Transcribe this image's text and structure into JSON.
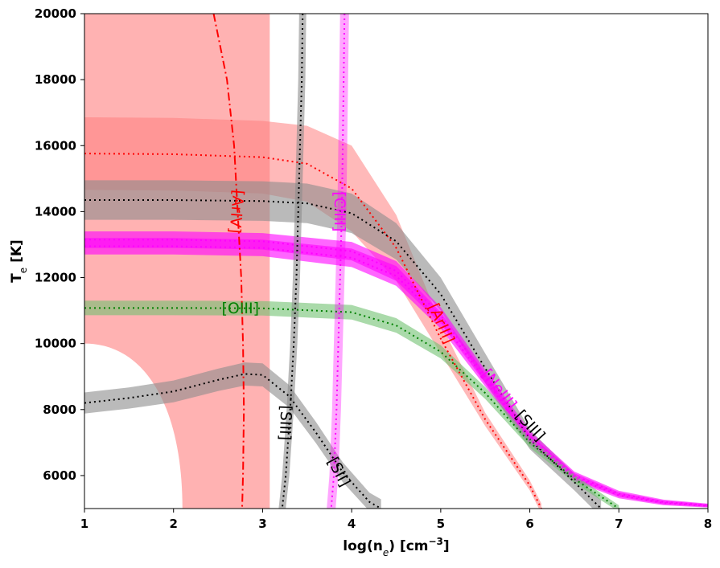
{
  "chart_data": {
    "type": "line",
    "title": "",
    "xlabel": "log(n",
    "xlabel_sub": "e",
    "xlabel_unit": ") [cm",
    "xlabel_sup": "−3",
    "xlabel_end": "]",
    "ylabel": "T",
    "ylabel_sub": "e",
    "ylabel_unit": " [K]",
    "xlim": [
      1,
      8
    ],
    "ylim": [
      5000,
      20000
    ],
    "xticks": [
      1,
      2,
      3,
      4,
      5,
      6,
      7,
      8
    ],
    "yticks": [
      6000,
      8000,
      10000,
      12000,
      14000,
      16000,
      18000,
      20000
    ],
    "colors": {
      "red": "#ff0000",
      "red_band": "#ff7f7f",
      "black": "#000000",
      "grey_band": "#8c8c8c",
      "magenta": "#ff00ff",
      "green": "#008000",
      "green_band": "#72c272"
    },
    "curves": [
      {
        "id": "ariii",
        "name": "[ArIII]",
        "color": "#ff0000",
        "line_style": "dotted",
        "x": [
          1,
          2,
          3,
          3.5,
          4,
          4.5,
          5,
          5.5,
          6,
          6.13
        ],
        "y": [
          15760,
          15740,
          15650,
          15450,
          14700,
          12900,
          10150,
          7700,
          5700,
          5000
        ],
        "band_half": [
          1100,
          1100,
          1100,
          1150,
          1300,
          1000,
          450,
          200,
          150,
          150
        ]
      },
      {
        "id": "sii-high",
        "name": "[SIII]",
        "color": "#000000",
        "line_style": "dotted",
        "x": [
          1,
          2,
          3,
          3.5,
          4,
          4.5,
          5,
          5.5,
          6,
          6.5,
          6.8
        ],
        "y": [
          14350,
          14350,
          14320,
          14250,
          13950,
          13100,
          11500,
          9250,
          7100,
          5800,
          5000
        ],
        "band_half": [
          600,
          600,
          600,
          600,
          600,
          550,
          500,
          450,
          300,
          250,
          250
        ]
      },
      {
        "id": "neiii",
        "name": "[NeIII]",
        "color": "#ff00ff",
        "line_style": "dotted",
        "x": [
          1,
          2,
          3,
          4,
          4.5,
          5,
          5.5,
          6,
          6.5,
          7,
          7.5,
          8
        ],
        "y": [
          12950,
          12950,
          12900,
          12600,
          12050,
          10700,
          8900,
          7100,
          5950,
          5400,
          5170,
          5080
        ],
        "band_half": [
          250,
          250,
          250,
          280,
          300,
          250,
          200,
          150,
          120,
          90,
          70,
          50
        ]
      },
      {
        "id": "neiii-b",
        "name": "",
        "color": "#ff00ff",
        "line_style": "dotted",
        "x": [
          1,
          2,
          3,
          4,
          4.5,
          5,
          5.5,
          6,
          6.5,
          7,
          7.5,
          8
        ],
        "y": [
          13150,
          13150,
          13100,
          12800,
          12200,
          10850,
          9000,
          7200,
          6000,
          5450,
          5200,
          5100
        ],
        "band_half": [
          250,
          250,
          250,
          280,
          300,
          250,
          200,
          150,
          120,
          90,
          70,
          50
        ]
      },
      {
        "id": "oiii",
        "name": "[OIII]",
        "color": "#008000",
        "line_style": "dotted",
        "x": [
          1,
          2,
          3,
          4,
          4.5,
          5,
          5.5,
          6,
          6.5,
          7
        ],
        "y": [
          11080,
          11080,
          11070,
          10950,
          10550,
          9750,
          8500,
          7000,
          5900,
          5000
        ],
        "band_half": [
          220,
          220,
          220,
          220,
          220,
          200,
          180,
          150,
          120,
          100
        ]
      },
      {
        "id": "sii-low",
        "name": "[SII]",
        "color": "#000000",
        "line_style": "dotted",
        "x": [
          1,
          1.5,
          2,
          2.5,
          2.8,
          3,
          3.3,
          3.6,
          3.9,
          4.2,
          4.33
        ],
        "y": [
          8200,
          8350,
          8550,
          8900,
          9080,
          9050,
          8400,
          7300,
          6100,
          5200,
          5000
        ],
        "band_half": [
          320,
          320,
          330,
          340,
          350,
          350,
          340,
          320,
          300,
          280,
          280
        ]
      }
    ],
    "vertical_curves": [
      {
        "id": "ariv",
        "name": "[ArIV]",
        "color": "#ff0000",
        "line_style": "dashdot",
        "y": [
          20000,
          18000,
          16000,
          14000,
          12000,
          10000,
          8000,
          6000,
          5000
        ],
        "x": [
          2.45,
          2.6,
          2.68,
          2.72,
          2.76,
          2.78,
          2.79,
          2.78,
          2.77
        ]
      },
      {
        "id": "siii-v",
        "name": "[SIII]",
        "color": "#000000",
        "line_style": "dotted",
        "y": [
          20000,
          18000,
          16000,
          14000,
          12000,
          10000,
          8000,
          6000,
          5000
        ],
        "x": [
          3.45,
          3.44,
          3.42,
          3.4,
          3.38,
          3.35,
          3.31,
          3.26,
          3.22
        ],
        "band_half_x": 0.04
      },
      {
        "id": "clii",
        "name": "[ClIII]",
        "color": "#ff00ff",
        "line_style": "dotted",
        "y": [
          20000,
          18000,
          16000,
          14000,
          12000,
          10000,
          8000,
          6000,
          5000
        ],
        "x": [
          3.92,
          3.91,
          3.9,
          3.89,
          3.87,
          3.85,
          3.83,
          3.8,
          3.77
        ],
        "band_half_x": 0.05
      }
    ],
    "regions": [
      {
        "id": "ariv-region",
        "note": "[ArIV] uncertainty area",
        "color": "#ff7f7f",
        "x_left_top": 1,
        "x_right": 3.08,
        "y_left_edge": 10000
      }
    ],
    "labels": [
      {
        "text": "[ArIV]",
        "color": "#ff0000",
        "x": 2.7,
        "y": 14000,
        "angle": 95
      },
      {
        "text": "[ClIII]",
        "color": "#ff00ff",
        "x": 3.86,
        "y": 14000,
        "angle": 90
      },
      {
        "text": "[OIII]",
        "color": "#008000",
        "x": 2.75,
        "y": 11050,
        "angle": 0
      },
      {
        "text": "[ArIII]",
        "color": "#ff0000",
        "x": 5.0,
        "y": 10600,
        "angle": 66
      },
      {
        "text": "[NeIII]",
        "color": "#ff00ff",
        "x": 5.65,
        "y": 8600,
        "angle": 52
      },
      {
        "text": "[SIII]",
        "color": "#000000",
        "x": 6.0,
        "y": 7500,
        "angle": 48
      },
      {
        "text": "[SIII]",
        "color": "#000000",
        "x": 3.25,
        "y": 7600,
        "angle": 92
      },
      {
        "text": "[SII]",
        "color": "#000000",
        "x": 3.85,
        "y": 6100,
        "angle": 62
      }
    ]
  }
}
